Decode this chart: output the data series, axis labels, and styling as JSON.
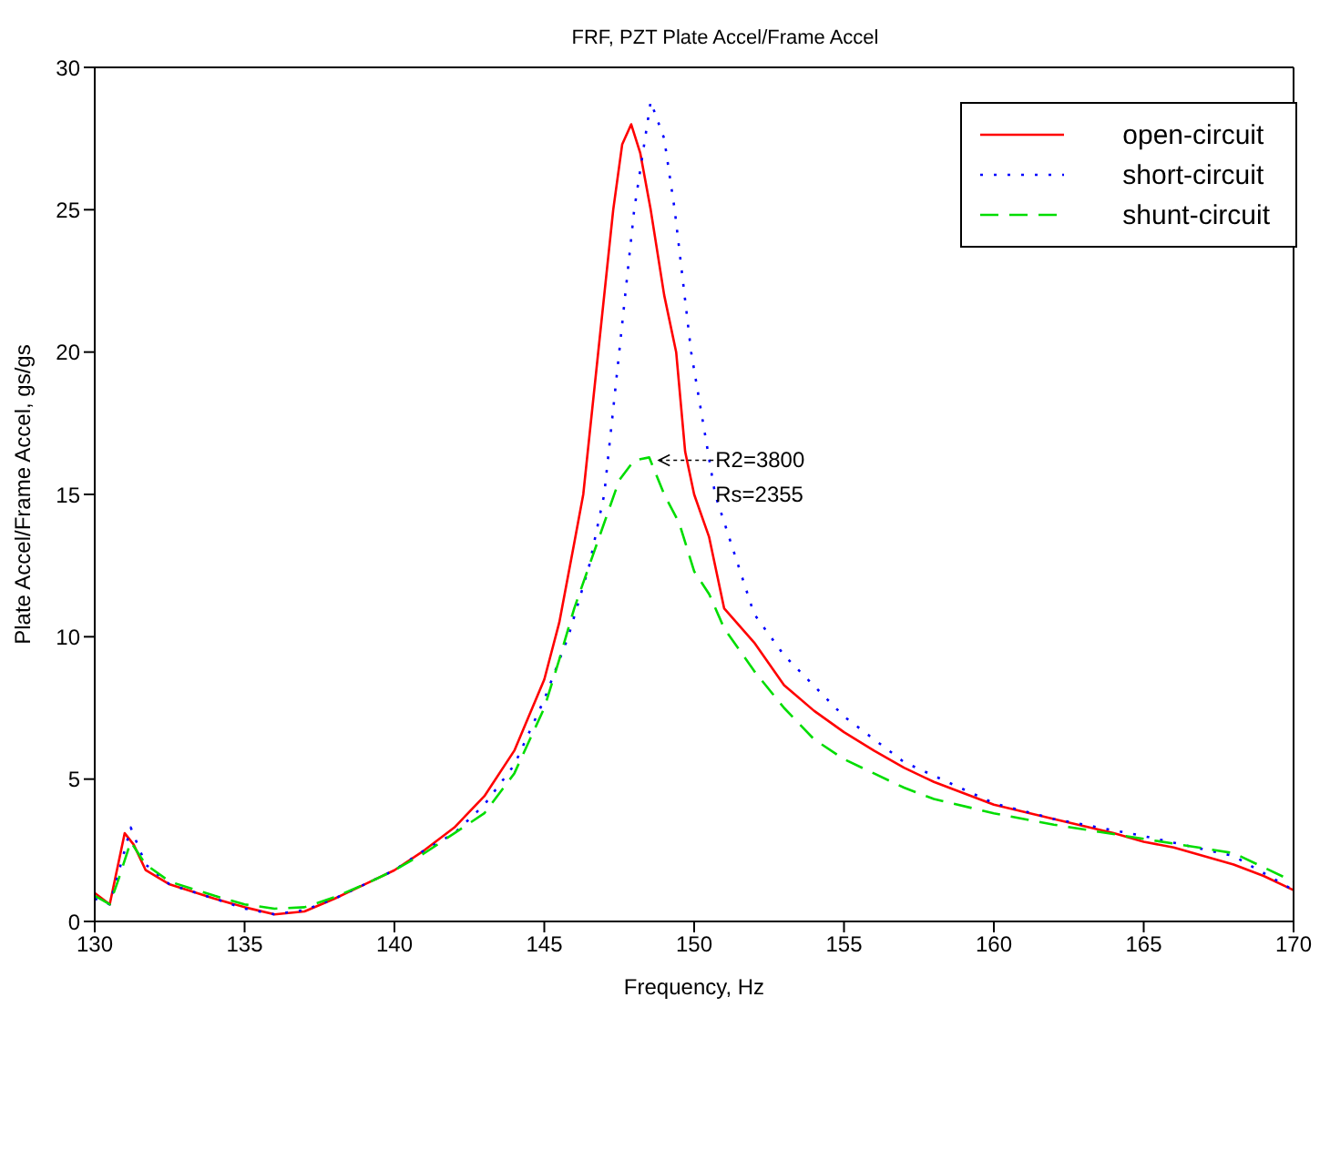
{
  "chart_data": {
    "type": "line",
    "title": "FRF,  PZT Plate Accel/Frame Accel",
    "xlabel": "Frequency, Hz",
    "ylabel": "Plate Accel/Frame Accel, gs/gs",
    "xlim": [
      130,
      170
    ],
    "ylim": [
      0,
      30
    ],
    "xticks": [
      130,
      135,
      140,
      145,
      150,
      155,
      160,
      165,
      170
    ],
    "yticks": [
      0,
      5,
      10,
      15,
      20,
      25,
      30
    ],
    "grid": false,
    "legend": "top right",
    "marker": "none",
    "annotations": [
      {
        "text": "R2=3800",
        "x": 148.7,
        "y": 16.2
      },
      "Rs=2355"
    ],
    "series": [
      {
        "name": "open-circuit",
        "color": "#ff0000",
        "line_style": "solid",
        "x": [
          130,
          130.5,
          131,
          131.3,
          131.7,
          132.5,
          134,
          135,
          136,
          137,
          138,
          139,
          140,
          141,
          142,
          143,
          144,
          145,
          145.5,
          146,
          146.3,
          146.8,
          147.3,
          147.6,
          147.9,
          148.2,
          148.55,
          149,
          149.4,
          149.7,
          150,
          150.5,
          151,
          152,
          153,
          154,
          155,
          156,
          157,
          158,
          159,
          160,
          162,
          164,
          165,
          166,
          168,
          169,
          170
        ],
        "values": [
          1.0,
          0.6,
          3.1,
          2.7,
          1.8,
          1.3,
          0.8,
          0.5,
          0.25,
          0.35,
          0.8,
          1.3,
          1.8,
          2.5,
          3.3,
          4.4,
          6.0,
          8.5,
          10.5,
          13.3,
          15,
          20,
          25,
          27.3,
          28,
          27,
          25,
          22,
          20,
          16.5,
          15,
          13.5,
          11,
          9.8,
          8.3,
          7.4,
          6.65,
          6.0,
          5.4,
          4.9,
          4.5,
          4.1,
          3.6,
          3.1,
          2.8,
          2.6,
          2.0,
          1.6,
          1.1
        ]
      },
      {
        "name": "short-circuit",
        "color": "#0000ff",
        "line_style": "dotted",
        "x": [
          130,
          130.5,
          131,
          131.2,
          131.7,
          132.5,
          134,
          135,
          136,
          137,
          138,
          139,
          140,
          141,
          142,
          143,
          144,
          145,
          145.8,
          146.5,
          147,
          147.5,
          148,
          148.55,
          149,
          149.35,
          149.9,
          150.7,
          152,
          153,
          155,
          157,
          160,
          162,
          165,
          168,
          170
        ],
        "values": [
          0.8,
          0.6,
          2.5,
          3.3,
          2.0,
          1.3,
          0.8,
          0.45,
          0.25,
          0.4,
          0.8,
          1.3,
          1.8,
          2.5,
          3.1,
          4.1,
          5.5,
          7.8,
          10,
          12.5,
          15,
          20,
          25,
          28.8,
          27.5,
          25,
          20,
          15,
          10.8,
          9.35,
          7.2,
          5.6,
          4.15,
          3.6,
          3.0,
          2.3,
          1.1
        ]
      },
      {
        "name": "shunt-circuit",
        "color": "#00dd00",
        "line_style": "dashed",
        "x": [
          130,
          130.5,
          130.8,
          131.2,
          131.7,
          132.5,
          134,
          135,
          136,
          137,
          138,
          139,
          140,
          141,
          142,
          143,
          144,
          145,
          145.5,
          146,
          146.5,
          147,
          147.5,
          148,
          148.5,
          149,
          149.5,
          150,
          150.5,
          151,
          152,
          153,
          154,
          155,
          156,
          157,
          158,
          160,
          162,
          165,
          168,
          170
        ],
        "values": [
          0.9,
          0.6,
          1.5,
          2.8,
          2.0,
          1.4,
          0.9,
          0.6,
          0.45,
          0.5,
          0.85,
          1.3,
          1.8,
          2.4,
          3.1,
          3.8,
          5.2,
          7.5,
          9.2,
          11.0,
          12.5,
          14.0,
          15.5,
          16.2,
          16.3,
          15,
          14.0,
          12.3,
          11.5,
          10.3,
          8.8,
          7.5,
          6.4,
          5.7,
          5.2,
          4.7,
          4.3,
          3.8,
          3.4,
          2.9,
          2.4,
          1.4
        ]
      }
    ]
  }
}
